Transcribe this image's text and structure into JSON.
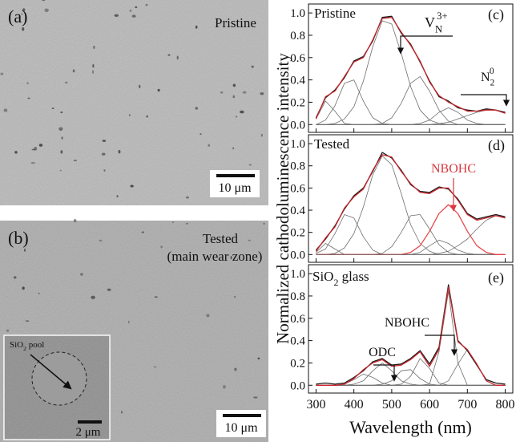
{
  "panels": [
    {
      "label": "(a)",
      "caption": "Pristine",
      "scale_bar": "10 μm"
    },
    {
      "label": "(b)",
      "caption": [
        "Tested",
        "(main wear zone)"
      ],
      "scale_bar": "10 μm",
      "inset": {
        "label": {
          "base": "SiO",
          "sub": "2",
          "rest": " pool"
        },
        "scale_bar": "2 μm"
      }
    }
  ],
  "chart_data": [
    {
      "type": "line",
      "x": [
        300,
        325,
        350,
        375,
        400,
        425,
        450,
        475,
        500,
        525,
        550,
        575,
        600,
        625,
        650,
        675,
        700,
        725,
        750,
        775,
        800
      ],
      "xlim": [
        280,
        820
      ],
      "xticks": [
        300,
        400,
        500,
        600,
        700,
        800
      ],
      "ylim": [
        -0.07,
        1.08
      ],
      "yticks": [
        {
          "value": 0,
          "label": "0.0"
        },
        0.2,
        0.4,
        0.6,
        0.8,
        {
          "value": 1,
          "label": "1.0"
        }
      ],
      "annotations": [
        "Pristine",
        "(c)",
        {
          "base": "V",
          "sub": "N",
          "sup": "3+"
        },
        {
          "base": "N",
          "sub": "2",
          "sup": "0"
        }
      ],
      "series": [
        {
          "color": "#6e6e6e",
          "values": [
            0.05,
            0.21,
            0.12,
            0.01,
            0,
            0,
            0,
            0,
            0,
            0,
            0,
            0,
            0,
            0,
            0,
            0,
            0,
            0,
            0,
            0,
            0
          ]
        },
        {
          "color": "#6e6e6e",
          "values": [
            0,
            0.04,
            0.17,
            0.37,
            0.4,
            0.21,
            0.06,
            0.01,
            0,
            0,
            0,
            0,
            0,
            0,
            0,
            0,
            0,
            0,
            0,
            0,
            0
          ]
        },
        {
          "color": "#6e6e6e",
          "values": [
            0,
            0,
            0.01,
            0.05,
            0.16,
            0.39,
            0.7,
            0.93,
            0.9,
            0.64,
            0.34,
            0.13,
            0.04,
            0.01,
            0,
            0,
            0,
            0,
            0,
            0,
            0
          ]
        },
        {
          "color": "#6e6e6e",
          "values": [
            0,
            0,
            0,
            0,
            0,
            0,
            0,
            0.01,
            0.06,
            0.19,
            0.37,
            0.43,
            0.3,
            0.13,
            0.03,
            0,
            0,
            0,
            0,
            0,
            0
          ]
        },
        {
          "color": "#6e6e6e",
          "values": [
            0,
            0,
            0,
            0,
            0,
            0,
            0,
            0,
            0,
            0,
            0,
            0.01,
            0.04,
            0.11,
            0.15,
            0.11,
            0.04,
            0.01,
            0,
            0,
            0
          ]
        },
        {
          "color": "#6e6e6e",
          "values": [
            0,
            0,
            0,
            0,
            0,
            0,
            0,
            0,
            0,
            0,
            0,
            0,
            0,
            0.01,
            0.02,
            0.05,
            0.08,
            0.11,
            0.13,
            0.13,
            0.1
          ]
        },
        {
          "color": "#1a1a1a",
          "values": [
            0.06,
            0.24,
            0.31,
            0.42,
            0.57,
            0.61,
            0.75,
            0.96,
            0.97,
            0.82,
            0.72,
            0.56,
            0.39,
            0.25,
            0.21,
            0.15,
            0.13,
            0.12,
            0.14,
            0.13,
            0.11
          ]
        },
        {
          "color": "#c8282e",
          "values": [
            0.05,
            0.25,
            0.3,
            0.43,
            0.56,
            0.6,
            0.76,
            0.95,
            0.96,
            0.83,
            0.71,
            0.57,
            0.38,
            0.26,
            0.2,
            0.16,
            0.12,
            0.12,
            0.13,
            0.13,
            0.1
          ]
        }
      ]
    },
    {
      "type": "line",
      "x": [
        300,
        325,
        350,
        375,
        400,
        425,
        450,
        475,
        500,
        525,
        550,
        575,
        600,
        625,
        650,
        675,
        700,
        725,
        750,
        775,
        800
      ],
      "xlim": [
        280,
        820
      ],
      "xticks": [
        300,
        400,
        500,
        600,
        700,
        800
      ],
      "ylim": [
        -0.07,
        1.08
      ],
      "yticks": [
        {
          "value": 0,
          "label": "0.0"
        },
        0.2,
        0.4,
        0.6,
        0.8,
        {
          "value": 1,
          "label": "1.0"
        }
      ],
      "ylabel": "Normalized cathodoluminescence intensity",
      "annotations": [
        "Tested",
        "(d)",
        "NBOHC"
      ],
      "series": [
        {
          "color": "#6e6e6e",
          "values": [
            0.02,
            0.1,
            0.05,
            0,
            0,
            0,
            0,
            0,
            0,
            0,
            0,
            0,
            0,
            0,
            0,
            0,
            0,
            0,
            0,
            0,
            0
          ]
        },
        {
          "color": "#6e6e6e",
          "values": [
            0.01,
            0.05,
            0.19,
            0.36,
            0.33,
            0.16,
            0.04,
            0,
            0,
            0,
            0,
            0,
            0,
            0,
            0,
            0,
            0,
            0,
            0,
            0,
            0
          ]
        },
        {
          "color": "#6e6e6e",
          "values": [
            0,
            0,
            0.01,
            0.06,
            0.19,
            0.43,
            0.72,
            0.89,
            0.81,
            0.55,
            0.27,
            0.1,
            0.03,
            0,
            0,
            0,
            0,
            0,
            0,
            0,
            0
          ]
        },
        {
          "color": "#6e6e6e",
          "values": [
            0,
            0,
            0,
            0,
            0,
            0,
            0,
            0.01,
            0.07,
            0.2,
            0.35,
            0.36,
            0.23,
            0.09,
            0.02,
            0,
            0,
            0,
            0,
            0,
            0
          ]
        },
        {
          "color": "#6e6e6e",
          "values": [
            0,
            0,
            0,
            0,
            0,
            0,
            0,
            0,
            0,
            0,
            0,
            0.02,
            0.08,
            0.13,
            0.1,
            0.04,
            0.01,
            0,
            0,
            0,
            0
          ]
        },
        {
          "color": "#e8484d",
          "values": [
            0,
            0,
            0,
            0,
            0,
            0,
            0,
            0,
            0,
            0,
            0.02,
            0.08,
            0.21,
            0.37,
            0.45,
            0.37,
            0.21,
            0.08,
            0.02,
            0,
            0
          ]
        },
        {
          "color": "#6e6e6e",
          "values": [
            0,
            0,
            0,
            0,
            0,
            0,
            0,
            0,
            0,
            0,
            0,
            0,
            0,
            0.01,
            0.03,
            0.08,
            0.14,
            0.23,
            0.31,
            0.35,
            0.33
          ]
        },
        {
          "color": "#1a1a1a",
          "values": [
            0.04,
            0.14,
            0.26,
            0.41,
            0.53,
            0.6,
            0.75,
            0.92,
            0.87,
            0.76,
            0.63,
            0.57,
            0.56,
            0.61,
            0.59,
            0.5,
            0.37,
            0.32,
            0.34,
            0.36,
            0.34
          ]
        },
        {
          "color": "#c8282e",
          "values": [
            0.03,
            0.15,
            0.25,
            0.42,
            0.52,
            0.59,
            0.76,
            0.9,
            0.88,
            0.75,
            0.64,
            0.56,
            0.55,
            0.6,
            0.6,
            0.49,
            0.36,
            0.31,
            0.33,
            0.35,
            0.33
          ]
        }
      ]
    },
    {
      "type": "line",
      "x": [
        300,
        325,
        350,
        375,
        400,
        425,
        450,
        475,
        500,
        525,
        550,
        575,
        600,
        625,
        650,
        675,
        700,
        725,
        750,
        775,
        800
      ],
      "xlim": [
        280,
        820
      ],
      "xticks": [
        300,
        400,
        500,
        600,
        700,
        800
      ],
      "ylim": [
        -0.07,
        1.08
      ],
      "yticks": [
        {
          "value": 0,
          "label": "0.0"
        },
        0.2,
        0.4,
        0.6,
        0.8,
        {
          "value": 1,
          "label": "1.0"
        }
      ],
      "xlabel": "Wavelength (nm)",
      "annotations": [
        {
          "base": "SiO",
          "sub": "2",
          "rest": " glass"
        },
        "(e)",
        "NBOHC",
        "ODC"
      ],
      "series": [
        {
          "color": "#6e6e6e",
          "values": [
            0,
            0,
            0,
            0.01,
            0.05,
            0.1,
            0.07,
            0.02,
            0,
            0,
            0,
            0,
            0,
            0,
            0,
            0,
            0,
            0,
            0,
            0,
            0
          ]
        },
        {
          "color": "#6e6e6e",
          "values": [
            0,
            0,
            0,
            0,
            0.01,
            0.04,
            0.13,
            0.2,
            0.13,
            0.04,
            0.01,
            0,
            0,
            0,
            0,
            0,
            0,
            0,
            0,
            0,
            0
          ]
        },
        {
          "color": "#6e6e6e",
          "values": [
            0,
            0,
            0,
            0,
            0,
            0,
            0,
            0.01,
            0.04,
            0.13,
            0.14,
            0.06,
            0.01,
            0,
            0,
            0,
            0,
            0,
            0,
            0,
            0
          ]
        },
        {
          "color": "#6e6e6e",
          "values": [
            0,
            0,
            0,
            0,
            0,
            0,
            0,
            0,
            0,
            0.01,
            0.08,
            0.24,
            0.15,
            0.02,
            0,
            0,
            0,
            0,
            0,
            0,
            0
          ]
        },
        {
          "color": "#6e6e6e",
          "values": [
            0,
            0,
            0,
            0,
            0,
            0,
            0,
            0,
            0,
            0,
            0,
            0,
            0.01,
            0.3,
            0.84,
            0.2,
            0,
            0,
            0,
            0,
            0
          ]
        },
        {
          "color": "#6e6e6e",
          "values": [
            0,
            0,
            0,
            0,
            0,
            0,
            0,
            0,
            0,
            0,
            0,
            0,
            0,
            0,
            0.04,
            0.19,
            0.32,
            0.19,
            0.04,
            0,
            0
          ]
        },
        {
          "color": "#1a1a1a",
          "values": [
            0.01,
            0.02,
            0.01,
            0.02,
            0.07,
            0.13,
            0.21,
            0.24,
            0.18,
            0.19,
            0.24,
            0.31,
            0.19,
            0.34,
            0.9,
            0.4,
            0.31,
            0.18,
            0.05,
            0.02,
            0.01
          ]
        },
        {
          "color": "#c8282e",
          "values": [
            0,
            0,
            0,
            0.01,
            0.06,
            0.14,
            0.2,
            0.23,
            0.17,
            0.18,
            0.23,
            0.3,
            0.17,
            0.32,
            0.88,
            0.39,
            0.32,
            0.19,
            0.04,
            0,
            0
          ]
        }
      ]
    }
  ]
}
